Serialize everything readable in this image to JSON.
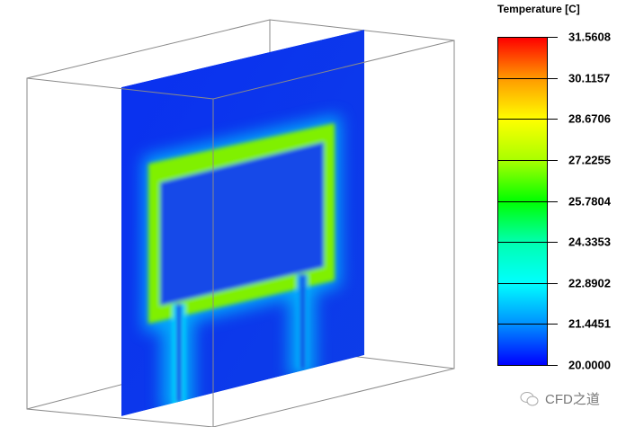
{
  "legend": {
    "title": "Temperature [C]",
    "labels": [
      "31.5608",
      "30.1157",
      "28.6706",
      "27.2255",
      "25.7804",
      "24.3353",
      "22.8902",
      "21.4451",
      "20.0000"
    ],
    "min": 20.0,
    "max": 31.5608,
    "colors": [
      "#ff0000",
      "#ff9a00",
      "#ffff00",
      "#a8ff00",
      "#00ff00",
      "#00ffb0",
      "#00ffff",
      "#0090ff",
      "#0000ff"
    ]
  },
  "watermark": {
    "text": "CFD之道",
    "icon": "wechat-icon"
  }
}
